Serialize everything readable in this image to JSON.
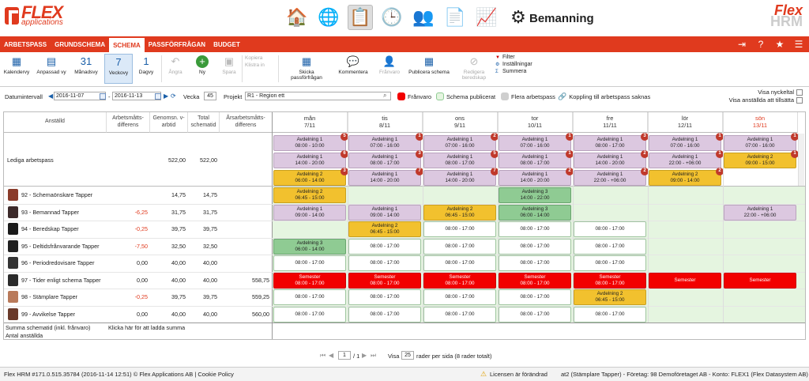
{
  "app": {
    "logo_top": "FLEX",
    "logo_bottom": "applications",
    "module_title": "Bemanning",
    "brand_top": "Flex",
    "brand_bottom": "HRM"
  },
  "nav": {
    "tabs": [
      "ARBETSPASS",
      "GRUNDSCHEMA",
      "SCHEMA",
      "PASSFÖRFRÅGAN",
      "BUDGET"
    ],
    "active": "SCHEMA"
  },
  "toolbar": {
    "buttons": [
      {
        "label": "Kalendervy",
        "icon": "calendar-grid-icon",
        "disabled": false,
        "selected": false
      },
      {
        "label": "Anpassad vy",
        "icon": "calendar-custom-icon",
        "disabled": false,
        "selected": false
      },
      {
        "label": "Månadsvy",
        "icon": "calendar-month-icon",
        "disabled": false,
        "selected": false
      },
      {
        "label": "Veckovy",
        "icon": "calendar-week-icon",
        "disabled": false,
        "selected": true
      },
      {
        "label": "Dagvy",
        "icon": "calendar-day-icon",
        "disabled": false,
        "selected": false
      },
      {
        "label": "Ångra",
        "icon": "undo-icon",
        "disabled": true,
        "selected": false
      },
      {
        "label": "Ny",
        "icon": "plus-icon",
        "disabled": false,
        "selected": false
      },
      {
        "label": "Spara",
        "icon": "save-icon",
        "disabled": true,
        "selected": false
      }
    ],
    "copy_labels": [
      "Kopiera",
      "Klistra in"
    ],
    "buttons2": [
      {
        "label": "Skicka passförfrågan",
        "icon": "send-calendar-icon",
        "disabled": false
      },
      {
        "label": "Kommentera",
        "icon": "comment-icon",
        "disabled": false
      },
      {
        "label": "Frånvaro",
        "icon": "absence-icon",
        "disabled": true
      },
      {
        "label": "Publicera schema",
        "icon": "publish-calendar-icon",
        "disabled": false
      },
      {
        "label": "Redigera beredskap",
        "icon": "edit-standby-icon",
        "disabled": true
      }
    ],
    "filter_links": [
      "Filter",
      "Inställningar",
      "Summera"
    ]
  },
  "filters": {
    "date_label": "Datumintervall",
    "date_from": "2016-11-07",
    "date_sep": "-",
    "date_to": "2016-11-13",
    "week_label": "Vecka",
    "week": "45",
    "project_label": "Projekt",
    "project": "R1 - Region ett"
  },
  "legend": [
    {
      "label": "Frånvaro",
      "color": "#f20000"
    },
    {
      "label": "Schema publicerat",
      "color": "#e5f5e0"
    },
    {
      "label": "Flera arbetspass",
      "color": "#cfcfcf"
    },
    {
      "label": "Koppling till arbetspass saknas",
      "color": ""
    }
  ],
  "right_links": [
    "Visa nyckeltal",
    "Visa anställda att tillsätta"
  ],
  "table": {
    "headers": [
      "Anställd",
      "Arbetsmåtts-differens",
      "Genomsn. v-arbtid",
      "Total schematid",
      "Årsarbetsmåtts-differens"
    ],
    "days": [
      {
        "name": "mån",
        "date": "7/11"
      },
      {
        "name": "tis",
        "date": "8/11"
      },
      {
        "name": "ons",
        "date": "9/11"
      },
      {
        "name": "tor",
        "date": "10/11"
      },
      {
        "name": "fre",
        "date": "11/11"
      },
      {
        "name": "lör",
        "date": "12/11"
      },
      {
        "name": "sön",
        "date": "13/11"
      }
    ],
    "open_row": {
      "label": "Lediga arbetspass",
      "avg": "522,00",
      "total": "522,00"
    },
    "employees": [
      {
        "name": "92 - Schemaönskare Tapper",
        "diff": "",
        "avg": "14,75",
        "total": "14,75",
        "year": ""
      },
      {
        "name": "93 - Bemannad Tapper",
        "diff": "-6,25",
        "avg": "31,75",
        "total": "31,75",
        "year": ""
      },
      {
        "name": "94 - Beredskap Tapper",
        "diff": "-0,25",
        "avg": "39,75",
        "total": "39,75",
        "year": ""
      },
      {
        "name": "95 - Deltidsfrånvarande Tapper",
        "diff": "-7,50",
        "avg": "32,50",
        "total": "32,50",
        "year": ""
      },
      {
        "name": "96 - Periodredovisare Tapper",
        "diff": "0,00",
        "avg": "40,00",
        "total": "40,00",
        "year": ""
      },
      {
        "name": "97 - Tider enligt schema Tapper",
        "diff": "0,00",
        "avg": "40,00",
        "total": "40,00",
        "year": "558,75"
      },
      {
        "name": "98 - Stämplare Tapper",
        "diff": "-0,25",
        "avg": "39,75",
        "total": "39,75",
        "year": "559,25"
      },
      {
        "name": "99 - Avvikelse Tapper",
        "diff": "0,00",
        "avg": "40,00",
        "total": "40,00",
        "year": "560,00"
      }
    ],
    "summary_rows": [
      "Summa schematid (inkl. frånvaro)",
      "Antal anställda"
    ],
    "summary_link": "Klicka här för att ladda summa"
  },
  "open_shifts": [
    [
      {
        "t": "Avdelning 1",
        "h": "08:00 - 10:00",
        "c": "lilac",
        "b": "5"
      },
      {
        "t": "Avdelning 1",
        "h": "07:00 - 16:00",
        "c": "lilac",
        "b": "1"
      },
      {
        "t": "Avdelning 1",
        "h": "07:00 - 16:00",
        "c": "lilac",
        "b": "2"
      },
      {
        "t": "Avdelning 1",
        "h": "07:00 - 16:00",
        "c": "lilac",
        "b": "1"
      },
      {
        "t": "Avdelning 1",
        "h": "08:00 - 17:00",
        "c": "lilac",
        "b": "3"
      },
      {
        "t": "Avdelning 1",
        "h": "07:00 - 16:00",
        "c": "lilac",
        "b": "1"
      },
      {
        "t": "Avdelning 1",
        "h": "07:00 - 16:00",
        "c": "lilac",
        "b": "1"
      }
    ],
    [
      {
        "t": "Avdelning 1",
        "h": "14:00 - 20:00",
        "c": "lilac",
        "b": "6"
      },
      {
        "t": "Avdelning 1",
        "h": "08:00 - 17:00",
        "c": "lilac",
        "b": "3"
      },
      {
        "t": "Avdelning 1",
        "h": "08:00 - 17:00",
        "c": "lilac",
        "b": "5"
      },
      {
        "t": "Avdelning 1",
        "h": "08:00 - 17:00",
        "c": "lilac",
        "b": "1"
      },
      {
        "t": "Avdelning 1",
        "h": "14:00 - 20:00",
        "c": "lilac",
        "b": "2"
      },
      {
        "t": "Avdelning 1",
        "h": "22:00 - +06:00",
        "c": "lilac",
        "b": "1"
      },
      {
        "t": "Avdelning 2",
        "h": "09:00 - 15:00",
        "c": "yellow",
        "b": "1"
      }
    ],
    [
      {
        "t": "Avdelning 2",
        "h": "06:00 - 14:00",
        "c": "yellow",
        "b": "3"
      },
      {
        "t": "Avdelning 1",
        "h": "14:00 - 20:00",
        "c": "lilac",
        "b": "7"
      },
      {
        "t": "Avdelning 1",
        "h": "14:00 - 20:00",
        "c": "lilac",
        "b": "7"
      },
      {
        "t": "Avdelning 1",
        "h": "14:00 - 20:00",
        "c": "lilac",
        "b": "2"
      },
      {
        "t": "Avdelning 1",
        "h": "22:00 - +06:00",
        "c": "lilac",
        "b": "2"
      },
      {
        "t": "Avdelning 2",
        "h": "09:00 - 14:00",
        "c": "yellow",
        "b": "2"
      },
      null
    ]
  ],
  "emp_shifts": [
    [
      {
        "t": "Avdelning 2",
        "h": "06:45 - 15:00",
        "c": "yellow"
      },
      null,
      null,
      {
        "t": "Avdelning 3",
        "h": "14:00 - 22:00",
        "c": "green"
      },
      null,
      null,
      null
    ],
    [
      {
        "t": "Avdelning 1",
        "h": "09:00 - 14:00",
        "c": "lilac"
      },
      {
        "t": "Avdelning 1",
        "h": "09:00 - 14:00",
        "c": "lilac"
      },
      {
        "t": "Avdelning 2",
        "h": "06:45 - 15:00",
        "c": "yellow"
      },
      {
        "t": "Avdelning 3",
        "h": "06:00 - 14:00",
        "c": "green"
      },
      null,
      null,
      {
        "t": "Avdelning 1",
        "h": "22:00 - +06:00",
        "c": "lilac"
      }
    ],
    [
      null,
      {
        "t": "Avdelning 2",
        "h": "06:45 - 15:00",
        "c": "yellow"
      },
      {
        "t": "",
        "h": "08:00 - 17:00",
        "c": "white"
      },
      {
        "t": "",
        "h": "08:00 - 17:00",
        "c": "white"
      },
      {
        "t": "",
        "h": "08:00 - 17:00",
        "c": "white"
      },
      null,
      null
    ],
    [
      {
        "t": "Avdelning 3",
        "h": "06:00 - 14:00",
        "c": "green"
      },
      {
        "t": "",
        "h": "08:00 - 17:00",
        "c": "white"
      },
      {
        "t": "",
        "h": "08:00 - 17:00",
        "c": "white"
      },
      {
        "t": "",
        "h": "08:00 - 17:00",
        "c": "white"
      },
      {
        "t": "",
        "h": "08:00 - 17:00",
        "c": "white"
      },
      null,
      null
    ],
    [
      {
        "t": "",
        "h": "08:00 - 17:00",
        "c": "white"
      },
      {
        "t": "",
        "h": "08:00 - 17:00",
        "c": "white"
      },
      {
        "t": "",
        "h": "08:00 - 17:00",
        "c": "white"
      },
      {
        "t": "",
        "h": "08:00 - 17:00",
        "c": "white"
      },
      {
        "t": "",
        "h": "08:00 - 17:00",
        "c": "white"
      },
      null,
      null
    ],
    [
      {
        "t": "Semester",
        "h": "08:00 - 17:00",
        "c": "red"
      },
      {
        "t": "Semester",
        "h": "08:00 - 17:00",
        "c": "red"
      },
      {
        "t": "Semester",
        "h": "08:00 - 17:00",
        "c": "red"
      },
      {
        "t": "Semester",
        "h": "08:00 - 17:00",
        "c": "red"
      },
      {
        "t": "Semester",
        "h": "08:00 - 17:00",
        "c": "red"
      },
      {
        "t": "Semester",
        "h": "",
        "c": "red"
      },
      {
        "t": "Semester",
        "h": "",
        "c": "red"
      }
    ],
    [
      {
        "t": "",
        "h": "08:00 - 17:00",
        "c": "white"
      },
      {
        "t": "",
        "h": "08:00 - 17:00",
        "c": "white"
      },
      {
        "t": "",
        "h": "08:00 - 17:00",
        "c": "white"
      },
      {
        "t": "",
        "h": "08:00 - 17:00",
        "c": "white"
      },
      {
        "t": "Avdelning 2",
        "h": "06:45 - 15:00",
        "c": "yellow"
      },
      null,
      null
    ],
    [
      {
        "t": "",
        "h": "08:00 - 17:00",
        "c": "white"
      },
      {
        "t": "",
        "h": "08:00 - 17:00",
        "c": "white"
      },
      {
        "t": "",
        "h": "08:00 - 17:00",
        "c": "white"
      },
      {
        "t": "",
        "h": "08:00 - 17:00",
        "c": "white"
      },
      {
        "t": "",
        "h": "08:00 - 17:00",
        "c": "white"
      },
      null,
      null
    ]
  ],
  "pager": {
    "page": "1",
    "of": "/ 1",
    "show": "Visa",
    "per_page": "25",
    "suffix": "rader per sida (8 rader totalt)"
  },
  "status": {
    "left": "Flex HRM #171.0.515.35784 (2016-11-14 12:51) © Flex Applications AB | Cookie Policy",
    "license": "Licensen är förändrad",
    "right": "at2 (Stämplare Tapper)  -  Företag: 98 Demoföretaget AB  -  Konto: FLEX1 (Flex Datasystem AB)"
  }
}
